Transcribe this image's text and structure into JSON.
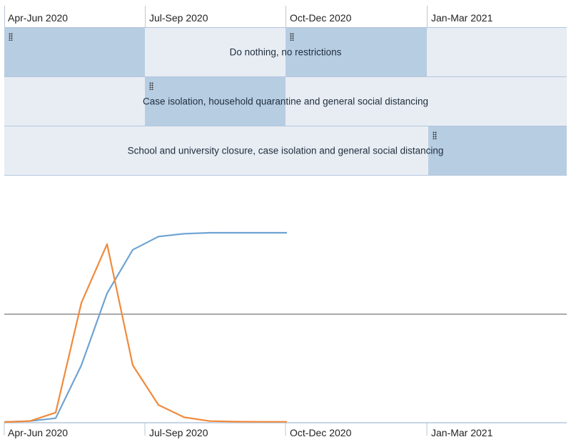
{
  "periods": [
    "Apr-Jun 2020",
    "Jul-Sep 2020",
    "Oct-Dec 2020",
    "Jan-Mar 2021"
  ],
  "colors": {
    "lane_bg": "#e8edf4",
    "segment_active": "#b7cde2",
    "series_blue": "#6fa3d2",
    "series_orange": "#f08a3c",
    "threshold_line": "#aaaaaa"
  },
  "lanes": [
    {
      "label": "Do nothing, no restrictions",
      "active_periods": [
        0,
        2
      ]
    },
    {
      "label": "Case isolation, household quarantine and general social distancing",
      "active_periods": [
        1
      ]
    },
    {
      "label": "School and university closure, case isolation and general social distancing",
      "active_periods": [
        3
      ]
    }
  ],
  "chart_data": {
    "type": "line",
    "title": "",
    "xlabel": "",
    "ylabel": "",
    "x": [
      0,
      0.5,
      1,
      1.5,
      2,
      2.5,
      3,
      3.5,
      4,
      4.5,
      5,
      5.5
    ],
    "categories": [
      "Apr-Jun 2020",
      "Jul-Sep 2020",
      "Oct-Dec 2020",
      "Jan-Mar 2021"
    ],
    "ylim": [
      0,
      100
    ],
    "threshold": 57,
    "series": [
      {
        "color": "#6fa3d2",
        "values": [
          0,
          0.5,
          2,
          30,
          68,
          91,
          98,
          99.5,
          100,
          100,
          100,
          100
        ]
      },
      {
        "color": "#f08a3c",
        "values": [
          0,
          0.5,
          5,
          63,
          94,
          30,
          9,
          2.5,
          0.5,
          0.2,
          0.1,
          0.1
        ]
      }
    ]
  }
}
